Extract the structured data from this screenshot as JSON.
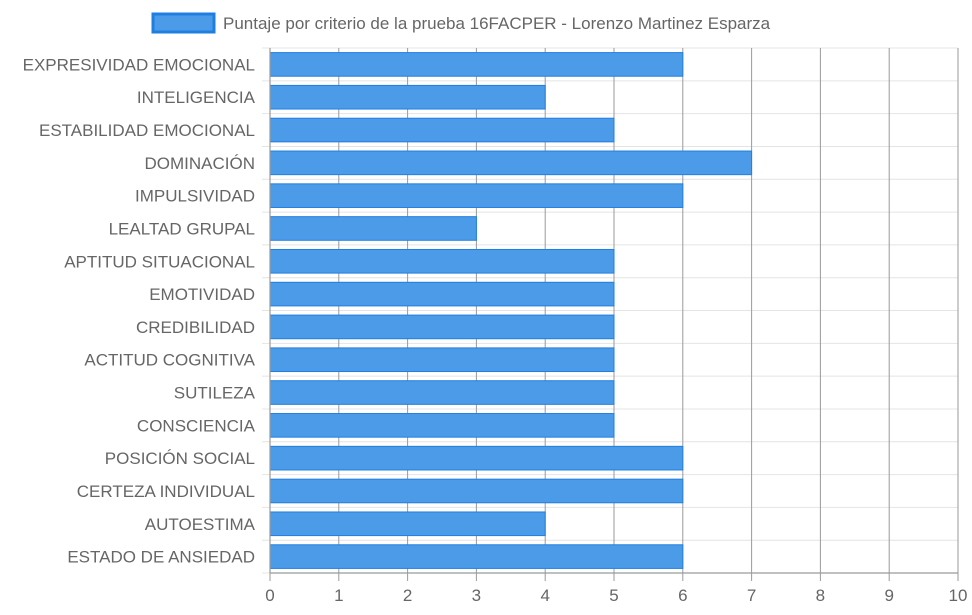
{
  "chart_data": {
    "type": "bar",
    "orientation": "horizontal",
    "categories": [
      "EXPRESIVIDAD EMOCIONAL",
      "INTELIGENCIA",
      "ESTABILIDAD EMOCIONAL",
      "DOMINACIÓN",
      "IMPULSIVIDAD",
      "LEALTAD GRUPAL",
      "APTITUD SITUACIONAL",
      "EMOTIVIDAD",
      "CREDIBILIDAD",
      "ACTITUD COGNITIVA",
      "SUTILEZA",
      "CONSCIENCIA",
      "POSICIÓN SOCIAL",
      "CERTEZA INDIVIDUAL",
      "AUTOESTIMA",
      "ESTADO DE ANSIEDAD"
    ],
    "series": [
      {
        "name": "Puntaje por criterio de la prueba 16FACPER - Lorenzo Martinez Esparza",
        "values": [
          6,
          4,
          5,
          7,
          6,
          3,
          5,
          5,
          5,
          5,
          5,
          5,
          6,
          6,
          4,
          6
        ],
        "color": "#4c9be8",
        "border_color": "#1f7fe0"
      }
    ],
    "xlim": [
      0,
      10
    ],
    "x_ticks": [
      0,
      1,
      2,
      3,
      4,
      5,
      6,
      7,
      8,
      9,
      10
    ],
    "grid": true,
    "legend_position": "top",
    "title": "",
    "xlabel": "",
    "ylabel": ""
  },
  "colors": {
    "bar_fill": "#4c9be8",
    "bar_border": "#1f7fe0",
    "vertical_grid": "#9a9a9a",
    "horizontal_grid": "#e4e4e4",
    "axis": "#9a9a9a",
    "text": "#666666"
  }
}
